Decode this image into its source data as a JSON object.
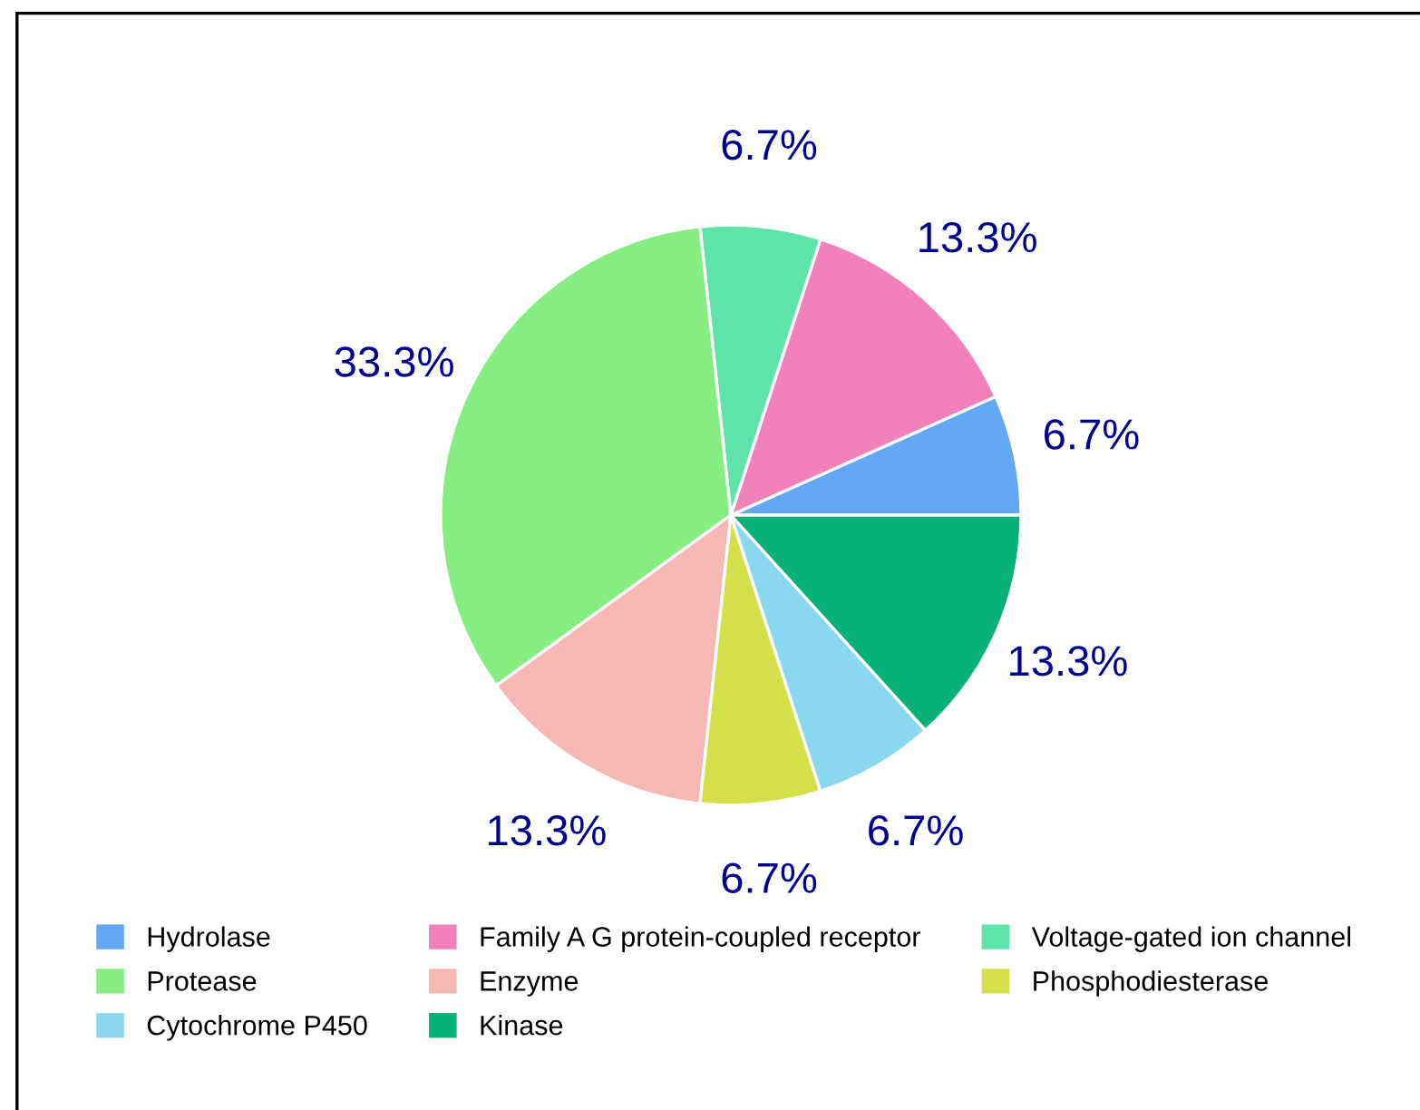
{
  "chart_data": {
    "type": "pie",
    "categories": [
      "Hydrolase",
      "Family A G protein-coupled receptor",
      "Voltage-gated ion channel",
      "Protease",
      "Enzyme",
      "Phosphodiesterase",
      "Cytochrome P450",
      "Kinase"
    ],
    "values": [
      6.7,
      13.3,
      6.7,
      33.3,
      13.3,
      6.7,
      6.7,
      13.3
    ],
    "colors": [
      "#63a8f5",
      "#f281b9",
      "#5ee3ab",
      "#85ed82",
      "#f5b8b5",
      "#d4e04a",
      "#8ad8f0",
      "#08b07a"
    ],
    "value_labels": [
      "6.7%",
      "13.3%",
      "6.7%",
      "33.3%",
      "13.3%",
      "6.7%",
      "6.7%",
      "13.3%"
    ],
    "legend": "bottom"
  }
}
